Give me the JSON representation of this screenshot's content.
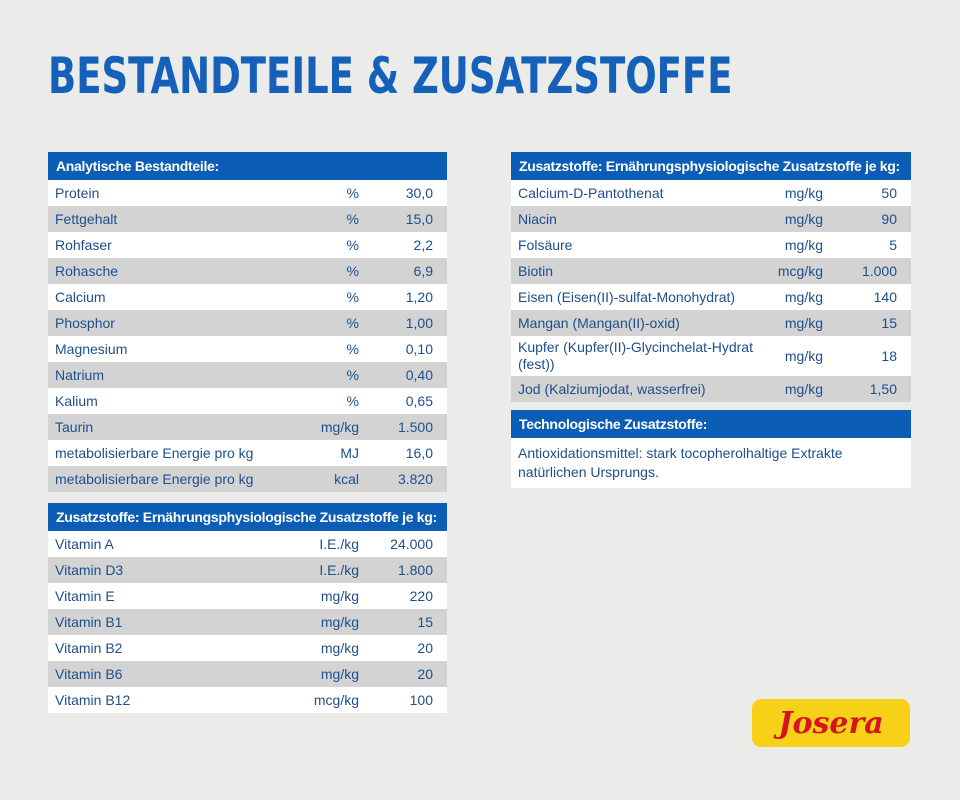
{
  "title": "Bestandteile & Zusatzstoffe",
  "analytic": {
    "header": "Analytische Bestandteile:",
    "rows": [
      [
        "Protein",
        "%",
        "30,0"
      ],
      [
        "Fettgehalt",
        "%",
        "15,0"
      ],
      [
        "Rohfaser",
        "%",
        "2,2"
      ],
      [
        "Rohasche",
        "%",
        "6,9"
      ],
      [
        "Calcium",
        "%",
        "1,20"
      ],
      [
        "Phosphor",
        "%",
        "1,00"
      ],
      [
        "Magnesium",
        "%",
        "0,10"
      ],
      [
        "Natrium",
        "%",
        "0,40"
      ],
      [
        "Kalium",
        "%",
        "0,65"
      ],
      [
        "Taurin",
        "mg/kg",
        "1.500"
      ],
      [
        "metabolisierbare Energie pro kg",
        "MJ",
        "16,0"
      ],
      [
        "metabolisierbare Energie pro kg",
        "kcal",
        "3.820"
      ]
    ]
  },
  "vitamins": {
    "header": "Zusatzstoffe: Ernährungsphysiologische Zusatzstoffe je kg:",
    "rows": [
      [
        "Vitamin A",
        "I.E./kg",
        "24.000"
      ],
      [
        "Vitamin D3",
        "I.E./kg",
        "1.800"
      ],
      [
        "Vitamin E",
        "mg/kg",
        "220"
      ],
      [
        "Vitamin B1",
        "mg/kg",
        "15"
      ],
      [
        "Vitamin B2",
        "mg/kg",
        "20"
      ],
      [
        "Vitamin B6",
        "mg/kg",
        "20"
      ],
      [
        "Vitamin B12",
        "mcg/kg",
        "100"
      ]
    ]
  },
  "minerals": {
    "header": "Zusatzstoffe: Ernährungsphysiologische Zusatzstoffe je kg:",
    "rows": [
      [
        "Calcium-D-Pantothenat",
        "mg/kg",
        "50"
      ],
      [
        "Niacin",
        "mg/kg",
        "90"
      ],
      [
        "Folsäure",
        "mg/kg",
        "5"
      ],
      [
        "Biotin",
        "mcg/kg",
        "1.000"
      ],
      [
        "Eisen (Eisen(II)-sulfat-Monohydrat)",
        "mg/kg",
        "140"
      ],
      [
        "Mangan (Mangan(II)-oxid)",
        "mg/kg",
        "15"
      ],
      [
        "Kupfer (Kupfer(II)-Glycinchelat-Hydrat (fest))",
        "mg/kg",
        "18"
      ],
      [
        "Jod (Kalziumjodat, wasserfrei)",
        "mg/kg",
        "1,50"
      ]
    ]
  },
  "technological": {
    "header": "Technologische Zusatzstoffe:",
    "text": "Antioxidationsmittel: stark tocopherolhaltige Extrakte natürlichen Ursprungs."
  },
  "logo": {
    "text": "Josera",
    "bg": "#f7d117",
    "color": "#d7141d"
  },
  "colors": {
    "header": "#0b5db5",
    "text": "#1d4f8c",
    "stripe": "#d3d3d3"
  }
}
